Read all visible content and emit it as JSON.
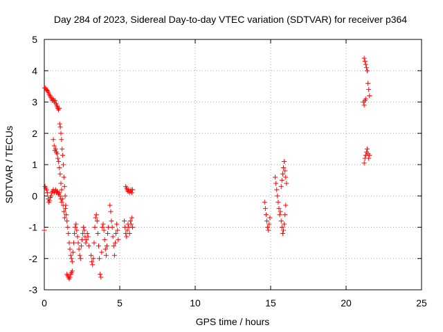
{
  "chart_data": {
    "type": "scatter",
    "title": "Day 284 of 2023, Sidereal Day-to-day VTEC variation (SDTVAR) for receiver p364",
    "xlabel": "GPS time / hours",
    "ylabel": "SDTVAR / TECUs",
    "xlim": [
      0,
      25
    ],
    "ylim": [
      -3,
      5
    ],
    "xticks": [
      0,
      5,
      10,
      15,
      20,
      25
    ],
    "xtick_labels": [
      "0",
      "5",
      "10",
      "15",
      "20",
      "25"
    ],
    "yticks": [
      -3,
      -2,
      -1,
      0,
      1,
      2,
      3,
      4,
      5
    ],
    "ytick_labels": [
      "-3",
      "-2",
      "-1",
      "0",
      "1",
      "2",
      "3",
      "4",
      "5"
    ],
    "grid": true,
    "marker": "+",
    "marker_color": "#ff0000",
    "series": [
      {
        "name": "SDTVAR",
        "points": [
          [
            0.0,
            -1.1
          ],
          [
            0.05,
            0.3
          ],
          [
            0.1,
            0.25
          ],
          [
            0.15,
            0.2
          ],
          [
            0.2,
            0.1
          ],
          [
            0.25,
            -0.1
          ],
          [
            0.3,
            -0.2
          ],
          [
            0.35,
            -0.15
          ],
          [
            0.4,
            -0.05
          ],
          [
            0.45,
            0.0
          ],
          [
            0.5,
            0.1
          ],
          [
            0.55,
            0.15
          ],
          [
            0.6,
            0.2
          ],
          [
            0.65,
            0.1
          ],
          [
            0.7,
            0.15
          ],
          [
            0.75,
            0.2
          ],
          [
            0.8,
            0.1
          ],
          [
            0.85,
            0.15
          ],
          [
            0.9,
            0.1
          ],
          [
            0.95,
            0.05
          ],
          [
            1.0,
            0.1
          ],
          [
            1.05,
            0.0
          ],
          [
            1.1,
            -0.1
          ],
          [
            1.15,
            -0.2
          ],
          [
            0.02,
            3.45
          ],
          [
            0.08,
            3.45
          ],
          [
            0.12,
            3.4
          ],
          [
            0.18,
            3.38
          ],
          [
            0.22,
            3.35
          ],
          [
            0.28,
            3.3
          ],
          [
            0.32,
            3.25
          ],
          [
            0.38,
            3.2
          ],
          [
            0.42,
            3.15
          ],
          [
            0.48,
            3.1
          ],
          [
            0.52,
            3.05
          ],
          [
            0.58,
            3.1
          ],
          [
            0.62,
            3.05
          ],
          [
            0.68,
            3.0
          ],
          [
            0.72,
            3.05
          ],
          [
            0.78,
            2.95
          ],
          [
            0.82,
            2.9
          ],
          [
            0.86,
            2.85
          ],
          [
            0.9,
            2.8
          ],
          [
            0.94,
            2.75
          ],
          [
            0.98,
            2.8
          ],
          [
            1.02,
            2.3
          ],
          [
            1.06,
            2.2
          ],
          [
            1.1,
            2.0
          ],
          [
            1.14,
            1.8
          ],
          [
            1.18,
            1.5
          ],
          [
            1.22,
            1.3
          ],
          [
            1.26,
            1.0
          ],
          [
            1.3,
            0.6
          ],
          [
            1.34,
            0.3
          ],
          [
            1.38,
            0.0
          ],
          [
            1.42,
            -0.3
          ],
          [
            0.6,
            1.8
          ],
          [
            0.65,
            1.6
          ],
          [
            0.7,
            1.45
          ],
          [
            0.75,
            1.5
          ],
          [
            0.8,
            1.4
          ],
          [
            0.85,
            1.35
          ],
          [
            0.9,
            1.2
          ],
          [
            0.95,
            1.1
          ],
          [
            1.0,
            0.9
          ],
          [
            1.05,
            0.7
          ],
          [
            1.1,
            0.4
          ],
          [
            1.15,
            0.2
          ],
          [
            1.2,
            -0.1
          ],
          [
            1.25,
            -0.3
          ],
          [
            1.3,
            -0.5
          ],
          [
            1.35,
            -0.7
          ],
          [
            1.4,
            -0.4
          ],
          [
            1.45,
            -0.6
          ],
          [
            1.5,
            -0.8
          ],
          [
            1.55,
            -1.0
          ],
          [
            1.6,
            -1.2
          ],
          [
            1.65,
            -1.5
          ],
          [
            1.7,
            -1.7
          ],
          [
            1.75,
            -1.9
          ],
          [
            1.8,
            -2.0
          ],
          [
            1.85,
            -2.1
          ],
          [
            1.9,
            -1.8
          ],
          [
            1.95,
            -1.5
          ],
          [
            2.0,
            -1.2
          ],
          [
            2.05,
            -1.0
          ],
          [
            2.1,
            -0.9
          ],
          [
            2.15,
            -1.1
          ],
          [
            1.5,
            -2.5
          ],
          [
            1.55,
            -2.55
          ],
          [
            1.6,
            -2.6
          ],
          [
            1.65,
            -2.65
          ],
          [
            1.7,
            -2.6
          ],
          [
            1.75,
            -2.5
          ],
          [
            1.8,
            -2.45
          ],
          [
            1.85,
            -2.4
          ],
          [
            2.2,
            -1.3
          ],
          [
            2.25,
            -1.5
          ],
          [
            2.3,
            -1.7
          ],
          [
            2.35,
            -1.9
          ],
          [
            2.4,
            -2.0
          ],
          [
            2.45,
            -1.6
          ],
          [
            2.5,
            -1.4
          ],
          [
            2.55,
            -1.2
          ],
          [
            2.6,
            -1.0
          ],
          [
            2.65,
            -1.1
          ],
          [
            2.7,
            -1.3
          ],
          [
            2.75,
            -1.5
          ],
          [
            2.8,
            -1.4
          ],
          [
            2.85,
            -1.2
          ],
          [
            2.9,
            -1.3
          ],
          [
            2.95,
            -1.6
          ],
          [
            3.1,
            -1.9
          ],
          [
            3.15,
            -2.1
          ],
          [
            3.2,
            -2.2
          ],
          [
            3.25,
            -2.0
          ],
          [
            3.3,
            -1.5
          ],
          [
            3.35,
            -1.0
          ],
          [
            3.4,
            -0.7
          ],
          [
            3.45,
            -0.6
          ],
          [
            3.5,
            -0.8
          ],
          [
            3.55,
            -1.2
          ],
          [
            3.6,
            -1.6
          ],
          [
            3.65,
            -2.0
          ],
          [
            3.7,
            -2.5
          ],
          [
            3.75,
            -2.6
          ],
          [
            3.8,
            -1.8
          ],
          [
            3.85,
            -1.0
          ],
          [
            3.9,
            -0.9
          ],
          [
            3.95,
            -1.1
          ],
          [
            4.0,
            -1.4
          ],
          [
            4.05,
            -1.7
          ],
          [
            4.1,
            -1.9
          ],
          [
            4.15,
            -1.6
          ],
          [
            4.2,
            -1.2
          ],
          [
            4.25,
            -1.0
          ],
          [
            4.35,
            -0.3
          ],
          [
            4.4,
            -0.5
          ],
          [
            4.45,
            -0.8
          ],
          [
            4.5,
            -1.0
          ],
          [
            4.55,
            -1.3
          ],
          [
            4.6,
            -1.6
          ],
          [
            4.65,
            -1.9
          ],
          [
            4.7,
            -1.5
          ],
          [
            4.75,
            -1.2
          ],
          [
            4.8,
            -0.9
          ],
          [
            4.85,
            -1.1
          ],
          [
            4.9,
            -1.4
          ],
          [
            5.3,
            -0.8
          ],
          [
            5.35,
            -1.0
          ],
          [
            5.4,
            -1.2
          ],
          [
            5.45,
            -1.3
          ],
          [
            5.5,
            -1.1
          ],
          [
            5.55,
            -0.9
          ],
          [
            5.6,
            -1.0
          ],
          [
            5.65,
            -1.2
          ],
          [
            5.7,
            -0.8
          ],
          [
            5.75,
            -0.9
          ],
          [
            5.8,
            -0.7
          ],
          [
            5.85,
            -1.0
          ],
          [
            5.4,
            0.3
          ],
          [
            5.45,
            0.25
          ],
          [
            5.5,
            0.2
          ],
          [
            5.55,
            0.15
          ],
          [
            5.6,
            0.2
          ],
          [
            5.65,
            0.1
          ],
          [
            5.7,
            0.15
          ],
          [
            5.75,
            0.2
          ],
          [
            5.8,
            0.1
          ],
          [
            5.85,
            0.2
          ],
          [
            14.6,
            -0.2
          ],
          [
            14.65,
            -0.4
          ],
          [
            14.7,
            -0.6
          ],
          [
            14.75,
            -0.8
          ],
          [
            14.8,
            -1.0
          ],
          [
            14.85,
            -1.1
          ],
          [
            14.9,
            -0.9
          ],
          [
            14.95,
            -0.7
          ],
          [
            15.3,
            0.6
          ],
          [
            15.35,
            0.4
          ],
          [
            15.4,
            0.2
          ],
          [
            15.45,
            0.0
          ],
          [
            15.5,
            -0.2
          ],
          [
            15.55,
            -0.4
          ],
          [
            15.6,
            -0.6
          ],
          [
            15.65,
            -0.5
          ],
          [
            15.7,
            -0.8
          ],
          [
            15.75,
            -1.0
          ],
          [
            15.8,
            -1.2
          ],
          [
            15.85,
            -1.1
          ],
          [
            15.9,
            -0.9
          ],
          [
            15.95,
            -0.6
          ],
          [
            16.0,
            -0.3
          ],
          [
            15.7,
            0.3
          ],
          [
            15.75,
            0.5
          ],
          [
            15.8,
            0.7
          ],
          [
            15.85,
            0.9
          ],
          [
            15.9,
            1.1
          ],
          [
            15.95,
            0.8
          ],
          [
            16.0,
            0.6
          ],
          [
            16.05,
            0.4
          ],
          [
            21.2,
            4.4
          ],
          [
            21.25,
            4.3
          ],
          [
            21.3,
            4.2
          ],
          [
            21.35,
            4.1
          ],
          [
            21.4,
            4.0
          ],
          [
            21.45,
            3.6
          ],
          [
            21.5,
            3.4
          ],
          [
            21.55,
            3.2
          ],
          [
            21.15,
            3.0
          ],
          [
            21.2,
            2.9
          ],
          [
            21.25,
            3.05
          ],
          [
            21.3,
            3.1
          ],
          [
            21.2,
            1.05
          ],
          [
            21.25,
            1.2
          ],
          [
            21.3,
            1.3
          ],
          [
            21.35,
            1.4
          ],
          [
            21.4,
            1.5
          ],
          [
            21.45,
            1.35
          ],
          [
            21.5,
            1.2
          ],
          [
            21.55,
            1.3
          ]
        ]
      }
    ]
  }
}
